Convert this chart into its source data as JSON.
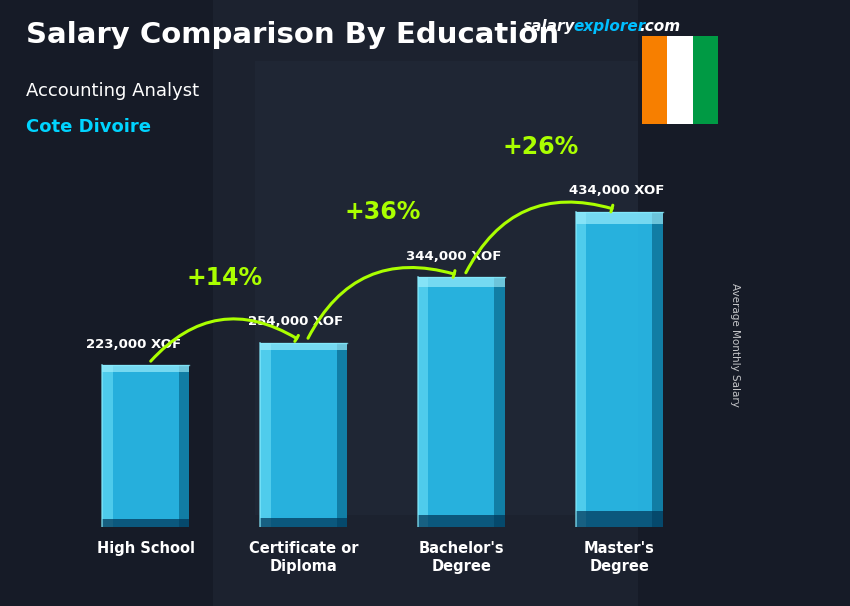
{
  "title": "Salary Comparison By Education",
  "subtitle": "Accounting Analyst",
  "country": "Cote Divoire",
  "ylabel": "Average Monthly Salary",
  "categories": [
    "High School",
    "Certificate or\nDiploma",
    "Bachelor's\nDegree",
    "Master's\nDegree"
  ],
  "values": [
    223000,
    254000,
    344000,
    434000
  ],
  "labels": [
    "223,000 XOF",
    "254,000 XOF",
    "344,000 XOF",
    "434,000 XOF"
  ],
  "pct_changes": [
    "+14%",
    "+36%",
    "+26%"
  ],
  "bar_color": "#29c5f6",
  "bar_edge_light": "#7de8ff",
  "bar_edge_dark": "#0077aa",
  "bg_color": "#1a1a2e",
  "overlay_color": "#111122",
  "title_color": "#ffffff",
  "subtitle_color": "#ffffff",
  "country_color": "#00d4ff",
  "label_color": "#ffffff",
  "pct_color": "#aaff00",
  "arrow_color": "#aaff00",
  "salary_color": "#ffffff",
  "explorer_color": "#00bfff",
  "flag_orange": "#F77F00",
  "flag_white": "#FFFFFF",
  "flag_green": "#009A44",
  "ylim": [
    0,
    500000
  ],
  "bar_width": 0.55,
  "xlabel_color": "#00d4ff"
}
